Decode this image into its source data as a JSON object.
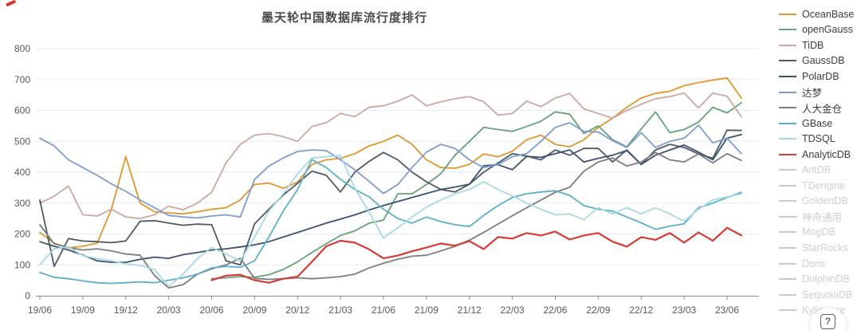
{
  "title": {
    "text": "墨天轮中国数据库流行度排行"
  },
  "help_icon": {
    "glyph": "?"
  },
  "colors": {
    "background": "#ffffff",
    "gridline": "#e4ebf2",
    "axis": "#8c8c8c",
    "tick_text": "#595959",
    "title_text": "#4a4a4a",
    "disabled_legend": "#cfcfcf",
    "corner_mark": "#d5382e"
  },
  "chart_data": {
    "type": "line",
    "title": "墨天轮中国数据库流行度排行",
    "grid": true,
    "legend_position": "right",
    "ylim": [
      0,
      800
    ],
    "y_ticks": [
      0,
      100,
      200,
      300,
      400,
      500,
      600,
      700,
      800
    ],
    "x": [
      "19/06",
      "19/07",
      "19/08",
      "19/09",
      "19/10",
      "19/11",
      "19/12",
      "20/01",
      "20/02",
      "20/03",
      "20/04",
      "20/05",
      "20/06",
      "20/07",
      "20/08",
      "20/09",
      "20/10",
      "20/11",
      "20/12",
      "21/01",
      "21/02",
      "21/03",
      "21/04",
      "21/05",
      "21/06",
      "21/07",
      "21/08",
      "21/09",
      "21/10",
      "21/11",
      "21/12",
      "22/01",
      "22/02",
      "22/03",
      "22/04",
      "22/05",
      "22/06",
      "22/07",
      "22/08",
      "22/09",
      "22/10",
      "22/11",
      "22/12",
      "23/01",
      "23/02",
      "23/03",
      "23/04",
      "23/05",
      "23/06",
      "23/07"
    ],
    "x_tick_labels": [
      "19/06",
      "19/09",
      "19/12",
      "20/03",
      "20/06",
      "20/09",
      "20/12",
      "21/03",
      "21/06",
      "21/09",
      "21/12",
      "22/03",
      "22/06",
      "22/09",
      "22/12",
      "23/03",
      "23/06"
    ],
    "x_tick_every": 3,
    "series": [
      {
        "name": "OceanBase",
        "color": "#e2962b",
        "enabled": true,
        "values": [
          205,
          170,
          155,
          160,
          170,
          280,
          450,
          300,
          272,
          268,
          265,
          272,
          280,
          285,
          310,
          360,
          365,
          348,
          368,
          425,
          440,
          445,
          460,
          485,
          500,
          520,
          490,
          440,
          415,
          413,
          425,
          459,
          450,
          468,
          505,
          520,
          490,
          482,
          505,
          545,
          575,
          610,
          640,
          655,
          662,
          680,
          690,
          698,
          705,
          640
        ]
      },
      {
        "name": "openGauss",
        "color": "#67a278",
        "enabled": true,
        "values": [
          null,
          null,
          null,
          null,
          null,
          null,
          null,
          null,
          null,
          null,
          null,
          null,
          55,
          58,
          62,
          60,
          68,
          85,
          110,
          140,
          168,
          195,
          210,
          235,
          245,
          330,
          330,
          360,
          395,
          455,
          500,
          545,
          538,
          532,
          548,
          565,
          595,
          588,
          525,
          550,
          505,
          482,
          540,
          595,
          528,
          538,
          562,
          610,
          592,
          625
        ]
      },
      {
        "name": "TiDB",
        "color": "#cba8a0",
        "enabled": true,
        "values": [
          300,
          322,
          355,
          262,
          258,
          280,
          255,
          250,
          262,
          290,
          278,
          300,
          335,
          430,
          490,
          520,
          525,
          515,
          500,
          548,
          560,
          590,
          580,
          610,
          615,
          630,
          650,
          615,
          628,
          638,
          645,
          628,
          585,
          590,
          630,
          612,
          640,
          655,
          605,
          590,
          575,
          600,
          620,
          638,
          645,
          656,
          608,
          656,
          646,
          579
        ]
      },
      {
        "name": "GaussDB",
        "color": "#4e5a66",
        "enabled": true,
        "values": [
          310,
          95,
          185,
          177,
          175,
          172,
          177,
          241,
          243,
          235,
          228,
          232,
          230,
          113,
          100,
          233,
          280,
          326,
          364,
          403,
          390,
          336,
          400,
          435,
          464,
          440,
          400,
          369,
          344,
          336,
          361,
          400,
          430,
          460,
          452,
          440,
          472,
          455,
          477,
          477,
          433,
          472,
          425,
          472,
          490,
          480,
          459,
          445,
          536,
          535
        ]
      },
      {
        "name": "PolarDB",
        "color": "#3b536e",
        "enabled": true,
        "values": [
          175,
          160,
          148,
          132,
          113,
          108,
          108,
          118,
          125,
          121,
          133,
          140,
          148,
          152,
          158,
          165,
          175,
          190,
          205,
          220,
          235,
          248,
          262,
          278,
          292,
          305,
          318,
          331,
          344,
          352,
          361,
          421,
          424,
          408,
          451,
          448,
          460,
          472,
          433,
          445,
          455,
          470,
          425,
          455,
          472,
          488,
          465,
          440,
          510,
          522
        ]
      },
      {
        "name": "达梦",
        "color": "#7e9dd2",
        "enabled": true,
        "values": [
          510,
          485,
          440,
          415,
          390,
          362,
          338,
          310,
          285,
          260,
          255,
          252,
          258,
          262,
          255,
          377,
          420,
          446,
          467,
          472,
          470,
          440,
          408,
          370,
          331,
          360,
          415,
          465,
          490,
          477,
          440,
          415,
          425,
          450,
          460,
          500,
          545,
          560,
          532,
          530,
          502,
          480,
          528,
          480,
          500,
          510,
          552,
          495,
          510,
          460
        ]
      },
      {
        "name": "人大金仓",
        "color": "#7d7d7d",
        "enabled": true,
        "values": [
          230,
          168,
          156,
          148,
          152,
          145,
          135,
          131,
          66,
          25,
          36,
          70,
          87,
          100,
          121,
          56,
          53,
          55,
          58,
          55,
          58,
          62,
          70,
          90,
          105,
          118,
          128,
          131,
          145,
          160,
          180,
          205,
          232,
          259,
          285,
          310,
          335,
          351,
          403,
          433,
          446,
          420,
          433,
          464,
          440,
          433,
          459,
          430,
          460,
          438
        ]
      },
      {
        "name": "GBase",
        "color": "#5bafc9",
        "enabled": true,
        "values": [
          75,
          60,
          55,
          48,
          42,
          40,
          42,
          45,
          42,
          50,
          58,
          70,
          90,
          95,
          92,
          113,
          190,
          274,
          344,
          441,
          415,
          377,
          344,
          320,
          280,
          250,
          235,
          255,
          240,
          230,
          224,
          260,
          292,
          318,
          330,
          336,
          340,
          325,
          292,
          280,
          274,
          255,
          236,
          215,
          225,
          233,
          285,
          300,
          318,
          335
        ]
      },
      {
        "name": "TDSQL",
        "color": "#a6d9e0",
        "enabled": true,
        "values": [
          100,
          152,
          158,
          130,
          120,
          113,
          103,
          98,
          85,
          30,
          70,
          120,
          156,
          135,
          113,
          190,
          274,
          330,
          395,
          446,
          450,
          454,
          348,
          270,
          187,
          220,
          255,
          287,
          310,
          330,
          344,
          369,
          344,
          323,
          300,
          280,
          262,
          265,
          246,
          285,
          265,
          285,
          265,
          285,
          265,
          241,
          280,
          310,
          320,
          330
        ]
      },
      {
        "name": "AnalyticDB",
        "color": "#d63c35",
        "enabled": true,
        "values": [
          null,
          null,
          null,
          null,
          null,
          null,
          null,
          null,
          null,
          null,
          null,
          null,
          50,
          65,
          68,
          50,
          42,
          55,
          62,
          110,
          160,
          178,
          172,
          150,
          121,
          130,
          144,
          156,
          169,
          162,
          177,
          151,
          190,
          185,
          203,
          195,
          208,
          182,
          195,
          203,
          175,
          159,
          190,
          181,
          203,
          172,
          205,
          178,
          220,
          195
        ]
      },
      {
        "name": "AntDB",
        "enabled": false,
        "values": []
      },
      {
        "name": "TDengine",
        "enabled": false,
        "values": []
      },
      {
        "name": "GoldenDB",
        "enabled": false,
        "values": []
      },
      {
        "name": "神舟通用",
        "enabled": false,
        "values": []
      },
      {
        "name": "MogDB",
        "enabled": false,
        "values": []
      },
      {
        "name": "StarRocks",
        "enabled": false,
        "values": []
      },
      {
        "name": "Doris",
        "enabled": false,
        "values": []
      },
      {
        "name": "DolphinDB",
        "enabled": false,
        "values": []
      },
      {
        "name": "SequoiaDB",
        "enabled": false,
        "values": []
      },
      {
        "name": "Kyligence",
        "enabled": false,
        "values": []
      }
    ]
  }
}
